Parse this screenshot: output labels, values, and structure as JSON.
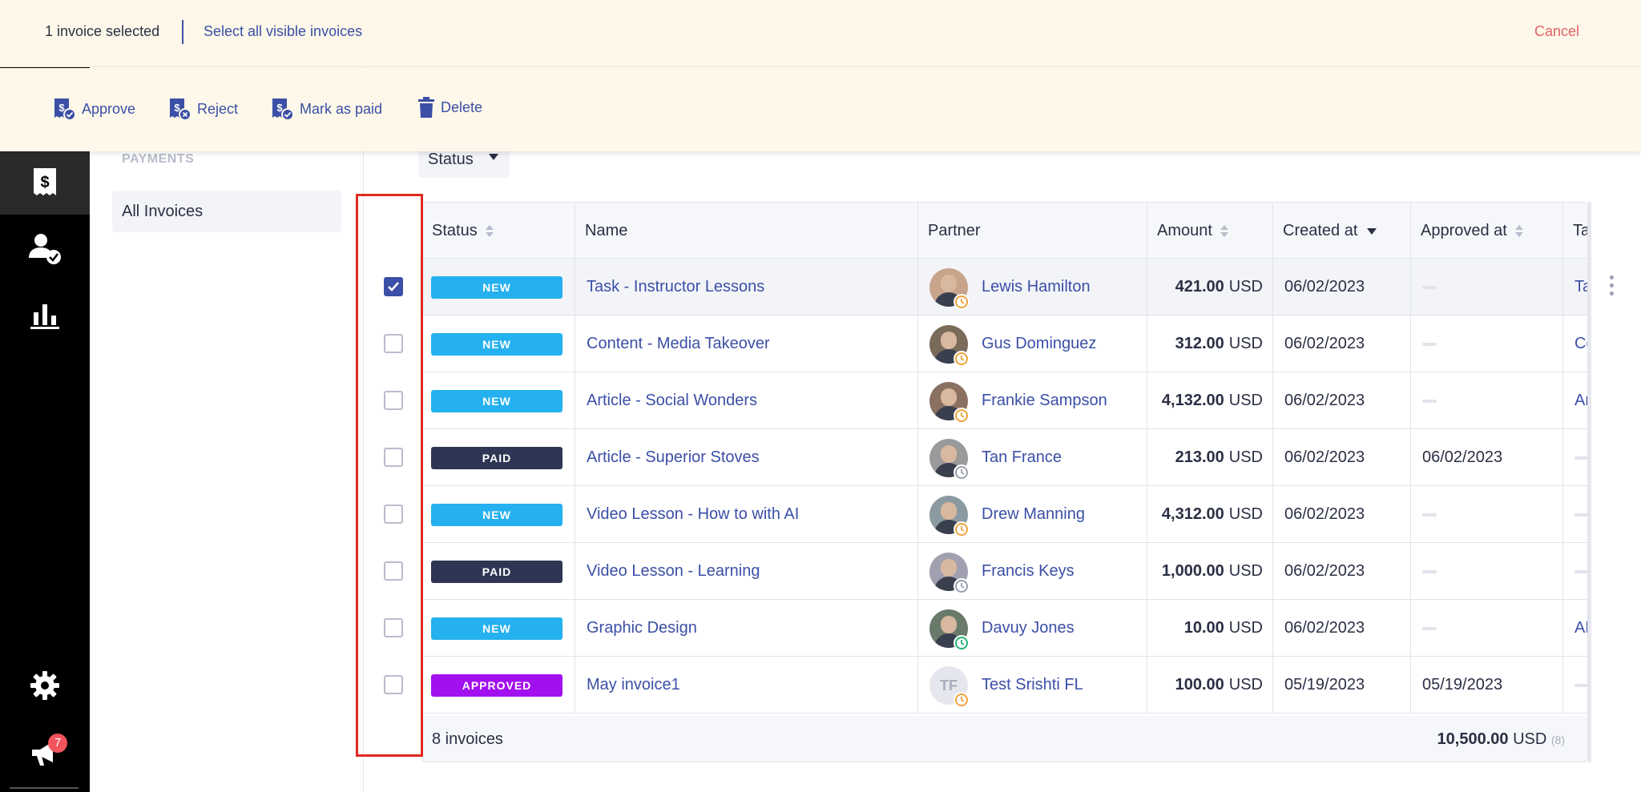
{
  "selection": {
    "count_text": "1 invoice selected",
    "select_all_text": "Select all visible invoices",
    "cancel_text": "Cancel"
  },
  "actions": [
    {
      "label": "Approve",
      "icon": "invoice-approve-icon"
    },
    {
      "label": "Reject",
      "icon": "invoice-reject-icon"
    },
    {
      "label": "Mark as paid",
      "icon": "invoice-paid-icon"
    },
    {
      "label": "Delete",
      "icon": "trash-icon"
    }
  ],
  "rail": {
    "items": [
      "invoices-icon",
      "partner-check-icon",
      "reports-icon",
      "gear-icon",
      "megaphone-icon"
    ],
    "notification_count": "7"
  },
  "subnav": {
    "heading": "PAYMENTS",
    "item": "All Invoices"
  },
  "filter": {
    "label": "Status"
  },
  "table": {
    "columns": [
      "Status",
      "Name",
      "Partner",
      "Amount",
      "Created at",
      "Approved at",
      "Ta"
    ],
    "rows": [
      {
        "status": "NEW",
        "name": "Task - Instructor Lessons",
        "partner": "Lewis Hamilton",
        "amount": "421.00",
        "currency": "USD",
        "created": "06/02/2023",
        "approved": "",
        "tail": "Ta",
        "checked": true
      },
      {
        "status": "NEW",
        "name": "Content - Media Takeover",
        "partner": "Gus Dominguez",
        "amount": "312.00",
        "currency": "USD",
        "created": "06/02/2023",
        "approved": "",
        "tail": "Co",
        "checked": false
      },
      {
        "status": "NEW",
        "name": "Article - Social Wonders",
        "partner": "Frankie Sampson",
        "amount": "4,132.00",
        "currency": "USD",
        "created": "06/02/2023",
        "approved": "",
        "tail": "Ar",
        "checked": false
      },
      {
        "status": "PAID",
        "name": "Article - Superior Stoves",
        "partner": "Tan France",
        "amount": "213.00",
        "currency": "USD",
        "created": "06/02/2023",
        "approved": "06/02/2023",
        "tail": "",
        "checked": false
      },
      {
        "status": "NEW",
        "name": "Video Lesson - How to with AI",
        "partner": "Drew Manning",
        "amount": "4,312.00",
        "currency": "USD",
        "created": "06/02/2023",
        "approved": "",
        "tail": "",
        "checked": false
      },
      {
        "status": "PAID",
        "name": "Video Lesson - Learning",
        "partner": "Francis Keys",
        "amount": "1,000.00",
        "currency": "USD",
        "created": "06/02/2023",
        "approved": "",
        "tail": "",
        "checked": false
      },
      {
        "status": "NEW",
        "name": "Graphic Design",
        "partner": "Davuy Jones",
        "amount": "10.00",
        "currency": "USD",
        "created": "06/02/2023",
        "approved": "",
        "tail": "AE",
        "checked": false
      },
      {
        "status": "APPROVED",
        "name": "May invoice1",
        "partner": "Test Srishti FL",
        "partner_initials": "TF",
        "amount": "100.00",
        "currency": "USD",
        "created": "05/19/2023",
        "approved": "05/19/2023",
        "tail": "",
        "checked": false
      }
    ],
    "footer": {
      "count_text": "8 invoices",
      "total": "10,500.00",
      "currency": "USD",
      "total_count": "(8)"
    }
  },
  "colors": {
    "accent": "#3b4fa6",
    "new": "#25b0ef",
    "paid": "#2f3654",
    "approved": "#a310ef",
    "cancel": "#e0616a",
    "highlight_box": "#e02a1f"
  }
}
